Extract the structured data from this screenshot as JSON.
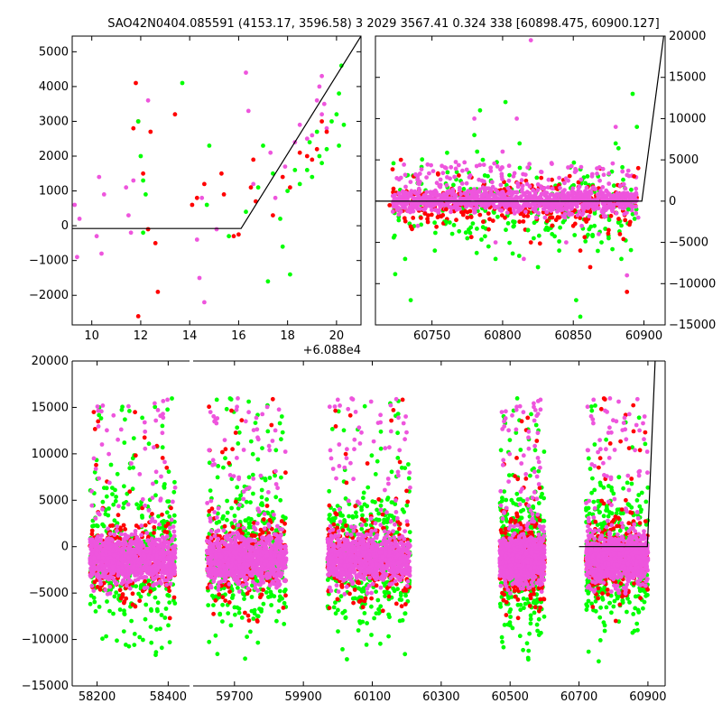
{
  "title": "SAO42N0404.085591 (4153.17, 3596.58)   3 2029 3567.41 0.324 338 [60898.475, 60900.127]",
  "colors": {
    "red": "#ff0000",
    "green": "#00ff00",
    "magenta": "#ee55dd",
    "line": "#000000"
  },
  "chart_data": [
    {
      "type": "scatter",
      "panel": "top-left",
      "xlim": [
        60889.2,
        60901.0
      ],
      "ylim": [
        -2850,
        5450
      ],
      "x_ticks": [
        10,
        12,
        14,
        16,
        18,
        20
      ],
      "x_tick_labels": [
        "10",
        "12",
        "14",
        "16",
        "18",
        "20"
      ],
      "x_offset_label": "+6.088e4",
      "y_ticks": [
        -2000,
        -1000,
        0,
        1000,
        2000,
        3000,
        4000,
        5000
      ],
      "y_tick_labels": [
        "−2000",
        "−1000",
        "0",
        "1000",
        "2000",
        "3000",
        "4000",
        "5000"
      ],
      "y_axis_side": "left",
      "model_line": [
        [
          60889.2,
          -80
        ],
        [
          60896.1,
          -80
        ],
        [
          60901.0,
          5450
        ]
      ],
      "series": [
        {
          "color": "magenta",
          "points": [
            [
              60889.3,
              600
            ],
            [
              60889.4,
              -900
            ],
            [
              60889.5,
              200
            ],
            [
              60890.2,
              -300
            ],
            [
              60890.3,
              1400
            ],
            [
              60890.4,
              -800
            ],
            [
              60890.5,
              900
            ],
            [
              60891.4,
              1100
            ],
            [
              60891.5,
              300
            ],
            [
              60891.6,
              -200
            ],
            [
              60891.7,
              1300
            ],
            [
              60892.3,
              3600
            ],
            [
              60894.3,
              -400
            ],
            [
              60894.4,
              -1500
            ],
            [
              60894.5,
              800
            ],
            [
              60894.6,
              -2200
            ],
            [
              60895.1,
              -100
            ],
            [
              60896.3,
              4400
            ],
            [
              60896.4,
              3300
            ],
            [
              60896.6,
              1200
            ],
            [
              60897.3,
              2100
            ],
            [
              60897.5,
              800
            ],
            [
              60897.9,
              1700
            ],
            [
              60898.3,
              2400
            ],
            [
              60898.5,
              2900
            ],
            [
              60898.8,
              2500
            ],
            [
              60899.0,
              2600
            ],
            [
              60899.2,
              3600
            ],
            [
              60899.3,
              4000
            ],
            [
              60899.4,
              4300
            ],
            [
              60899.5,
              3500
            ],
            [
              60899.6,
              2800
            ],
            [
              60899.4,
              3200
            ]
          ]
        },
        {
          "color": "red",
          "points": [
            [
              60891.7,
              2800
            ],
            [
              60891.8,
              4100
            ],
            [
              60891.9,
              3000
            ],
            [
              60892.1,
              1500
            ],
            [
              60892.3,
              -100
            ],
            [
              60892.4,
              2700
            ],
            [
              60892.6,
              -500
            ],
            [
              60892.7,
              -1900
            ],
            [
              60891.9,
              -2600
            ],
            [
              60893.4,
              3200
            ],
            [
              60894.1,
              600
            ],
            [
              60894.3,
              800
            ],
            [
              60894.6,
              1200
            ],
            [
              60895.3,
              1500
            ],
            [
              60895.4,
              900
            ],
            [
              60895.8,
              -300
            ],
            [
              60896.0,
              -250
            ],
            [
              60896.5,
              1100
            ],
            [
              60896.6,
              1900
            ],
            [
              60896.7,
              700
            ],
            [
              60897.4,
              300
            ],
            [
              60897.8,
              1400
            ],
            [
              60898.1,
              1100
            ],
            [
              60898.5,
              2100
            ],
            [
              60898.8,
              2000
            ],
            [
              60899.0,
              1900
            ],
            [
              60899.2,
              2200
            ],
            [
              60899.4,
              3000
            ],
            [
              60899.6,
              2700
            ]
          ]
        },
        {
          "color": "green",
          "points": [
            [
              60891.9,
              3000
            ],
            [
              60892.0,
              2000
            ],
            [
              60892.1,
              1300
            ],
            [
              60892.2,
              900
            ],
            [
              60892.1,
              -200
            ],
            [
              60893.7,
              4100
            ],
            [
              60894.7,
              600
            ],
            [
              60894.8,
              2300
            ],
            [
              60895.6,
              -300
            ],
            [
              60896.3,
              400
            ],
            [
              60896.8,
              1100
            ],
            [
              60897.0,
              2300
            ],
            [
              60897.2,
              -1600
            ],
            [
              60897.4,
              1500
            ],
            [
              60897.7,
              200
            ],
            [
              60897.8,
              -600
            ],
            [
              60898.0,
              1000
            ],
            [
              60898.1,
              -1400
            ],
            [
              60898.3,
              1600
            ],
            [
              60898.5,
              1200
            ],
            [
              60898.8,
              1600
            ],
            [
              60899.0,
              1400
            ],
            [
              60899.2,
              2700
            ],
            [
              60899.4,
              1800
            ],
            [
              60899.6,
              2200
            ],
            [
              60899.8,
              3000
            ],
            [
              60900.0,
              3200
            ],
            [
              60900.1,
              3800
            ],
            [
              60900.2,
              4600
            ],
            [
              60900.3,
              2900
            ],
            [
              60900.1,
              2300
            ],
            [
              60899.3,
              2000
            ],
            [
              60898.9,
              2400
            ]
          ]
        }
      ]
    },
    {
      "type": "scatter",
      "panel": "top-right",
      "xlim": [
        60710,
        60915
      ],
      "ylim": [
        -15000,
        20000
      ],
      "x_ticks": [
        60750,
        60800,
        60850,
        60900
      ],
      "x_tick_labels": [
        "60750",
        "60800",
        "60850",
        "60900"
      ],
      "y_ticks": [
        -15000,
        -10000,
        -5000,
        0,
        5000,
        10000,
        15000,
        20000
      ],
      "y_tick_labels": [
        "−15000",
        "−10000",
        "−5000",
        "0",
        "5000",
        "10000",
        "15000",
        "20000"
      ],
      "y_axis_side": "right",
      "model_line": [
        [
          60710,
          0
        ],
        [
          60898.5,
          0
        ],
        [
          60914,
          20000
        ]
      ],
      "series": [
        {
          "color": "green",
          "points": [
            [
              60731,
              -7000
            ],
            [
              60735,
              -12000
            ],
            [
              60752,
              -6000
            ],
            [
              60760,
              -2500
            ],
            [
              60775,
              -4500
            ],
            [
              60780,
              8000
            ],
            [
              60782,
              6000
            ],
            [
              60784,
              11000
            ],
            [
              60786,
              5000
            ],
            [
              60790,
              -5500
            ],
            [
              60795,
              -7000
            ],
            [
              60802,
              12000
            ],
            [
              60808,
              -3000
            ],
            [
              60812,
              7000
            ],
            [
              60818,
              -3500
            ],
            [
              60822,
              -4500
            ],
            [
              60825,
              -8000
            ],
            [
              60835,
              -4000
            ],
            [
              60840,
              -6000
            ],
            [
              60852,
              -12000
            ],
            [
              60855,
              -14000
            ],
            [
              60860,
              3000
            ],
            [
              60865,
              -3000
            ],
            [
              60870,
              -5000
            ],
            [
              60875,
              -4500
            ],
            [
              60880,
              7000
            ],
            [
              60884,
              -7000
            ],
            [
              60889,
              -1000
            ],
            [
              60892,
              13000
            ],
            [
              60895,
              9000
            ]
          ]
        },
        {
          "color": "magenta",
          "points": [
            [
              60740,
              -3000
            ],
            [
              60760,
              4000
            ],
            [
              60780,
              10000
            ],
            [
              60795,
              -5000
            ],
            [
              60800,
              6000
            ],
            [
              60810,
              10000
            ],
            [
              60815,
              -7000
            ],
            [
              60820,
              19500
            ],
            [
              60830,
              -2000
            ],
            [
              60845,
              -5000
            ],
            [
              60856,
              -3000
            ],
            [
              60868,
              -4000
            ],
            [
              60880,
              9000
            ],
            [
              60888,
              -9000
            ],
            [
              60896,
              -2000
            ]
          ]
        },
        {
          "color": "red",
          "points": [
            [
              60720,
              -500
            ],
            [
              60728,
              5000
            ],
            [
              60745,
              -1500
            ],
            [
              60760,
              -1000
            ],
            [
              60775,
              -2000
            ],
            [
              60790,
              -1500
            ],
            [
              60805,
              -1000
            ],
            [
              60812,
              -2500
            ],
            [
              60820,
              -5000
            ],
            [
              60840,
              -2000
            ],
            [
              60850,
              -3000
            ],
            [
              60855,
              -6000
            ],
            [
              60862,
              -8000
            ],
            [
              60875,
              -3500
            ],
            [
              60883,
              -4000
            ],
            [
              60888,
              -11000
            ],
            [
              60893,
              3000
            ],
            [
              60896,
              4000
            ]
          ]
        }
      ]
    },
    {
      "type": "scatter",
      "panel": "bottom",
      "ylim": [
        -15000,
        20000
      ],
      "x_ticks": [
        58200,
        58400,
        59700,
        59900,
        60100,
        60300,
        60500,
        60700,
        60900
      ],
      "x_tick_labels": [
        "58200",
        "58400",
        "59700",
        "59900",
        "60100",
        "60300",
        "60500",
        "60700",
        "60900"
      ],
      "y_ticks": [
        -15000,
        -10000,
        -5000,
        0,
        5000,
        10000,
        15000,
        20000
      ],
      "y_tick_labels": [
        "−15000",
        "−10000",
        "−5000",
        "0",
        "5000",
        "10000",
        "15000",
        "20000"
      ],
      "y_axis_side": "left",
      "segments": [
        {
          "xlim": [
            58130,
            58460
          ]
        },
        {
          "xlim": [
            59580,
            60950
          ]
        }
      ],
      "model_line": [
        [
          60700,
          0
        ],
        [
          60898.5,
          0
        ],
        [
          60921,
          20000
        ]
      ],
      "seasons": [
        [
          58180,
          58420
        ],
        [
          59620,
          59850
        ],
        [
          59970,
          60210
        ],
        [
          60470,
          60600
        ],
        [
          60720,
          60900
        ]
      ]
    }
  ]
}
